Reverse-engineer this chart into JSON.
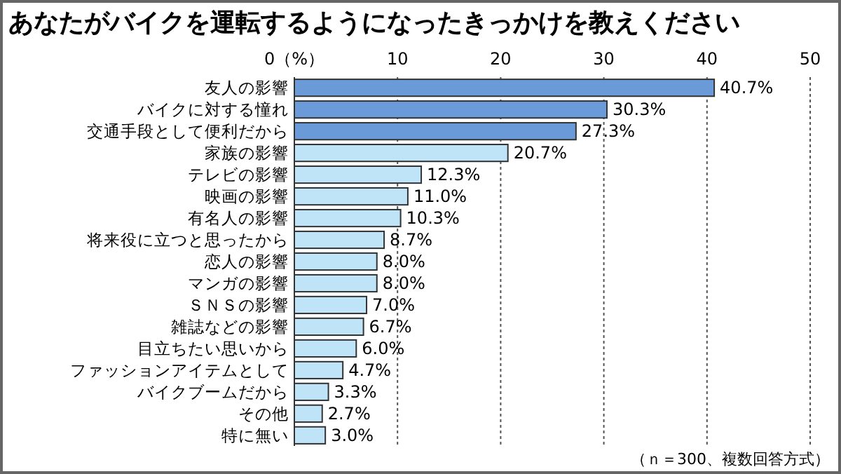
{
  "chart_data": {
    "type": "bar",
    "orientation": "horizontal",
    "title": "あなたがバイクを運転するようになったきっかけを教えください",
    "categories": [
      "友人の影響",
      "バイクに対する憧れ",
      "交通手段として便利だから",
      "家族の影響",
      "テレビの影響",
      "映画の影響",
      "有名人の影響",
      "将来役に立つと思ったから",
      "恋人の影響",
      "マンガの影響",
      "ＳＮＳの影響",
      "雑誌などの影響",
      "目立ちたい思いから",
      "ファッションアイテムとして",
      "バイクブームだから",
      "その他",
      "特に無い"
    ],
    "values": [
      40.7,
      30.3,
      27.3,
      20.7,
      12.3,
      11.0,
      10.3,
      8.7,
      8.0,
      8.0,
      7.0,
      6.7,
      6.0,
      4.7,
      3.3,
      2.7,
      3.0
    ],
    "colors": [
      "#6a9bd8",
      "#6a9bd8",
      "#6a9bd8",
      "#bfe3f7",
      "#bfe3f7",
      "#bfe3f7",
      "#bfe3f7",
      "#bfe3f7",
      "#bfe3f7",
      "#bfe3f7",
      "#bfe3f7",
      "#bfe3f7",
      "#bfe3f7",
      "#bfe3f7",
      "#bfe3f7",
      "#bfe3f7",
      "#bfe3f7"
    ],
    "value_labels": [
      "40.7%",
      "30.3%",
      "27.3%",
      "20.7%",
      "12.3%",
      "11.0%",
      "10.3%",
      "8.7%",
      "8.0%",
      "8.0%",
      "7.0%",
      "6.7%",
      "6.0%",
      "4.7%",
      "3.3%",
      "2.7%",
      "3.0%"
    ],
    "xlim": [
      0,
      50
    ],
    "xticks": [
      {
        "value": 0,
        "label": "0（%）"
      },
      10,
      20,
      30,
      40,
      50
    ],
    "grid": "x",
    "annotations": [
      "（ｎ＝300、複数回答方式）"
    ]
  }
}
